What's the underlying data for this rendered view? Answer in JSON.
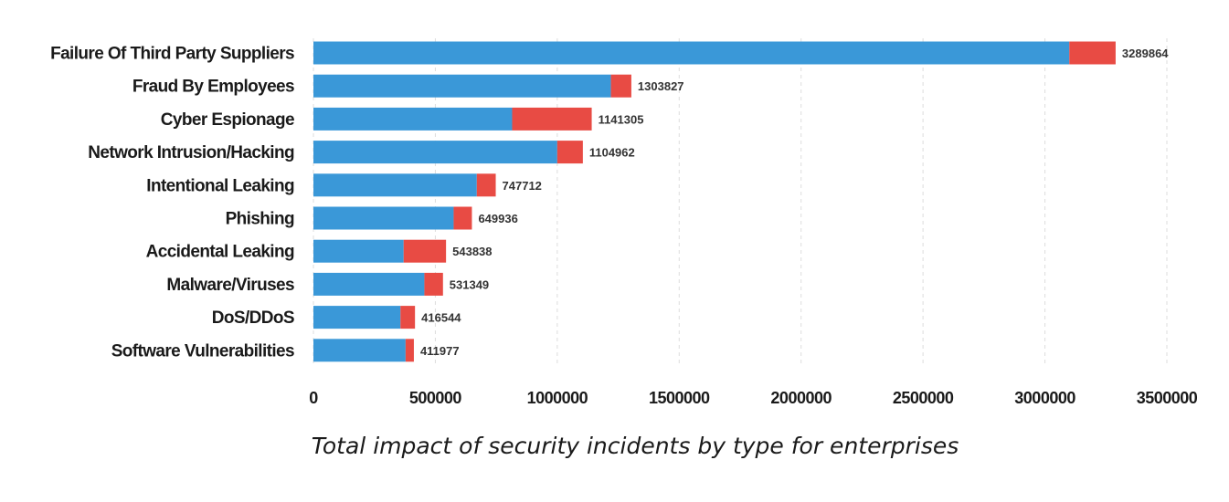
{
  "chart_data": {
    "type": "bar",
    "orientation": "horizontal",
    "stacked": true,
    "title": "Total impact of security incidents by type for enterprises",
    "xlabel": "",
    "ylabel": "",
    "xlim": [
      0,
      3500000
    ],
    "grid": true,
    "legend": "none",
    "x_ticks": [
      "0",
      "500000",
      "1000000",
      "1500000",
      "2000000",
      "2500000",
      "3000000",
      "3500000"
    ],
    "x_tick_values": [
      0,
      500000,
      1000000,
      1500000,
      2000000,
      2500000,
      3000000,
      3500000
    ],
    "categories": [
      "Failure Of Third Party Suppliers",
      "Fraud By Employees",
      "Cyber Espionage",
      "Network Intrusion/Hacking",
      "Intentional Leaking",
      "Phishing",
      "Accidental Leaking",
      "Malware/Viruses",
      "DoS/DDoS",
      "Software Vulnerabilities"
    ],
    "series": [
      {
        "color": "#3a98d8",
        "values": [
          3100000,
          1220000,
          815000,
          1000000,
          670000,
          575000,
          370000,
          455000,
          357000,
          378000
        ]
      },
      {
        "color": "#e84b44",
        "values": [
          189864,
          83827,
          326305,
          104962,
          77712,
          74936,
          173838,
          76349,
          59544,
          33977
        ]
      }
    ],
    "totals": [
      3289864,
      1303827,
      1141305,
      1104962,
      747712,
      649936,
      543838,
      531349,
      416544,
      411977
    ],
    "total_labels": [
      "3289864",
      "1303827",
      "1141305",
      "1104962",
      "747712",
      "649936",
      "543838",
      "531349",
      "416544",
      "411977"
    ]
  }
}
